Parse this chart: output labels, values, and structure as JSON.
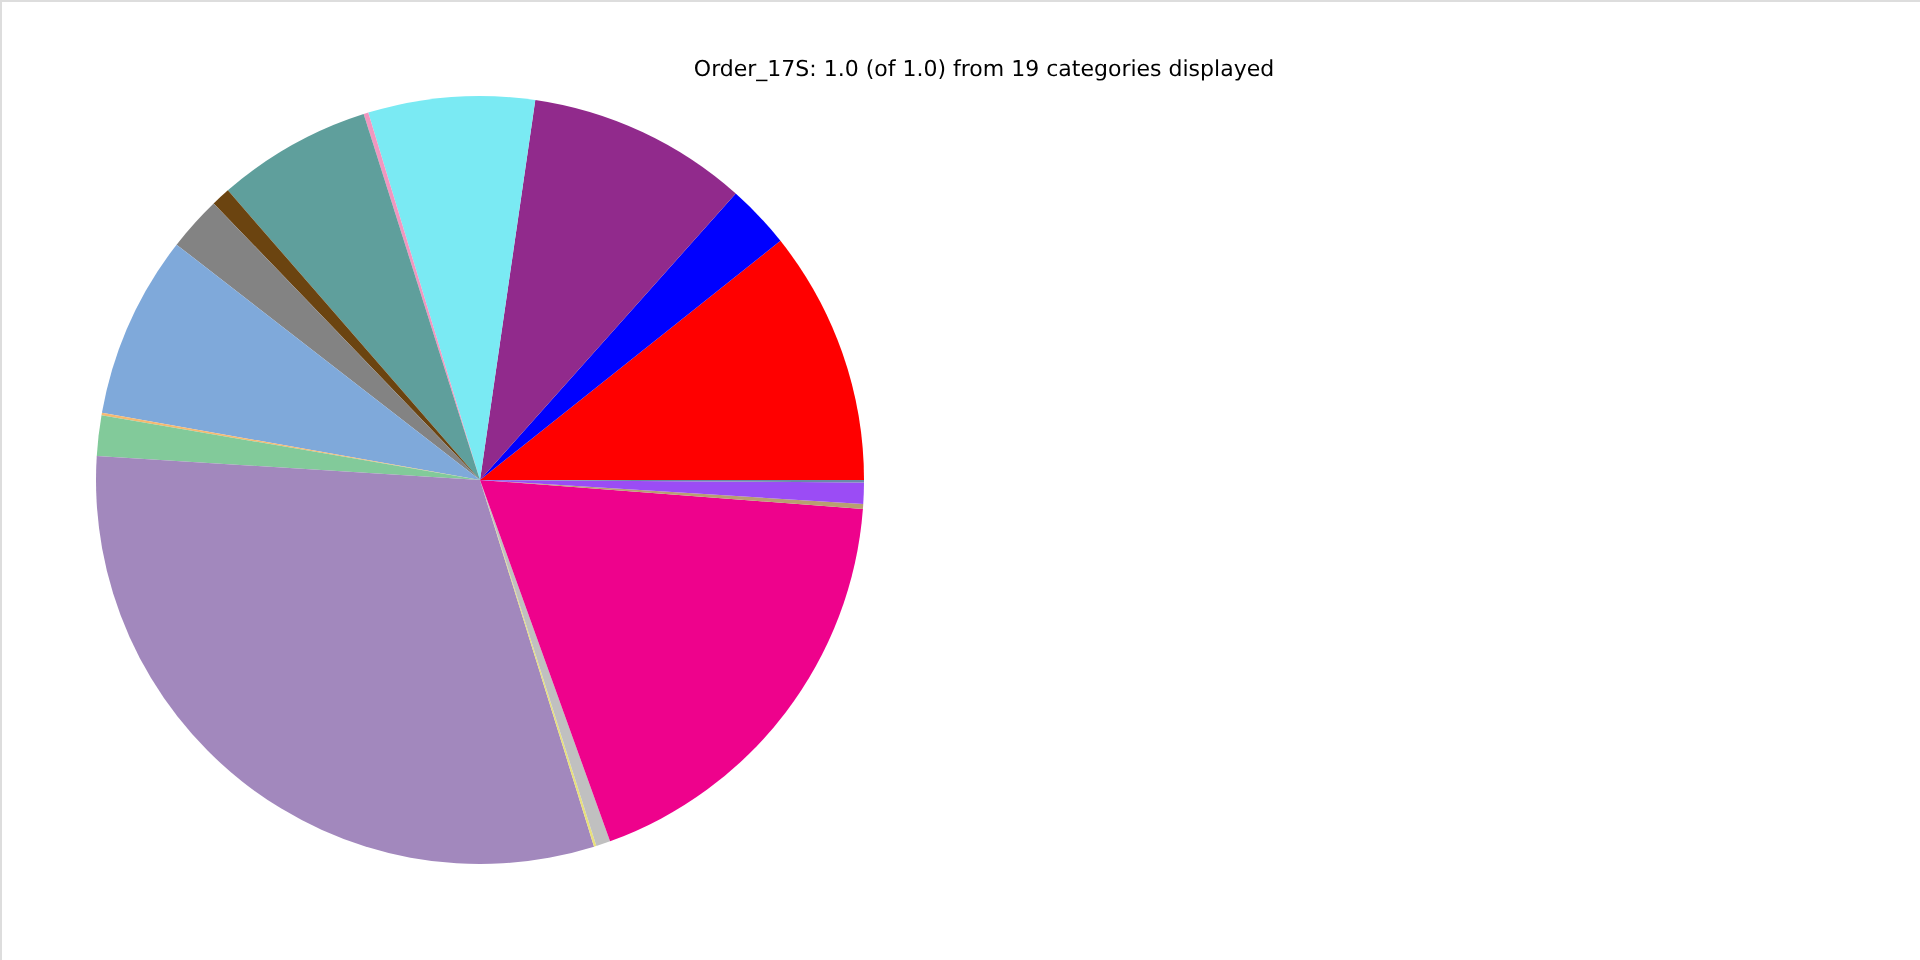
{
  "chart_data": {
    "type": "pie",
    "title": "Order_17S: 1.0 (of 1.0) from 19 categories displayed",
    "categories": [
      null,
      null,
      null,
      null,
      null,
      null,
      null,
      null,
      null,
      null,
      null,
      null,
      null,
      null,
      null,
      null,
      null,
      null
    ],
    "values": [
      10.7,
      2.7,
      9.3,
      7.0,
      0.2,
      6.5,
      0.8,
      2.3,
      7.7,
      0.1,
      1.7,
      30.8,
      0.1,
      0.6,
      18.3,
      0.2,
      0.9,
      0.1
    ],
    "colors": [
      "#ff0000",
      "#0000ff",
      "#912a8c",
      "#7aeaf3",
      "#f197c0",
      "#5f9f9c",
      "#6b4410",
      "#838383",
      "#7fa9da",
      "#f5b971",
      "#82ca9a",
      "#a288bd",
      "#e8e07a",
      "#c0c0c0",
      "#ee028c",
      "#b8a070",
      "#9b4cf5",
      "#6a8aa8"
    ],
    "legend": false
  }
}
